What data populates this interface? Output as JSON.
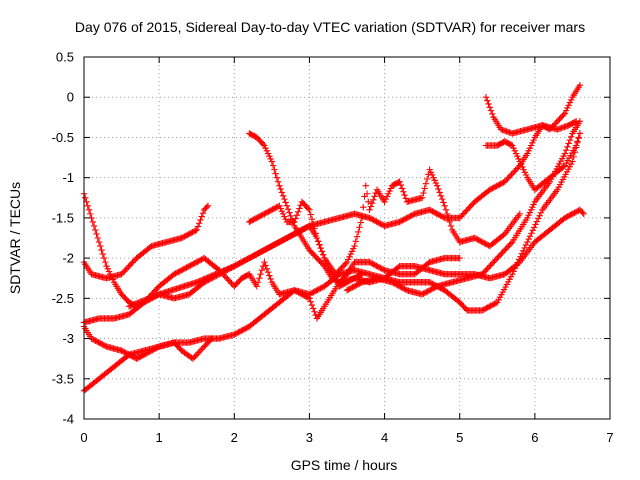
{
  "chart_data": {
    "type": "scatter",
    "title": "Day 076 of 2015, Sidereal Day-to-day VTEC variation (SDTVAR) for receiver mars",
    "xlabel": "GPS time / hours",
    "ylabel": "SDTVAR / TECUs",
    "xlim": [
      0,
      7
    ],
    "ylim": [
      -4,
      0.5
    ],
    "xticks": [
      0,
      1,
      2,
      3,
      4,
      5,
      6,
      7
    ],
    "yticks": [
      0.5,
      0,
      -0.5,
      -1,
      -1.5,
      -2,
      -2.5,
      -3,
      -3.5,
      -4
    ],
    "xtick_labels": [
      "0",
      "1",
      "2",
      "3",
      "4",
      "5",
      "6",
      "7"
    ],
    "ytick_labels": [
      "0.5",
      "0",
      "-0.5",
      "-1",
      "-1.5",
      "-2",
      "-2.5",
      "-3",
      "-3.5",
      "-4"
    ],
    "grid": true,
    "marker": "plus",
    "color": "#ff0000",
    "series": [
      {
        "values": [
          [
            0.0,
            -1.2
          ],
          [
            0.1,
            -1.5
          ],
          [
            0.2,
            -1.8
          ],
          [
            0.3,
            -2.1
          ],
          [
            0.4,
            -2.3
          ],
          [
            0.5,
            -2.45
          ],
          [
            0.6,
            -2.55
          ],
          [
            0.7,
            -2.6
          ],
          [
            0.8,
            -2.55
          ],
          [
            1.0,
            -2.45
          ],
          [
            1.2,
            -2.5
          ],
          [
            1.4,
            -2.45
          ],
          [
            1.6,
            -2.3
          ],
          [
            1.8,
            -2.2
          ],
          [
            2.0,
            -2.1
          ],
          [
            2.3,
            -1.95
          ],
          [
            2.6,
            -1.8
          ],
          [
            2.9,
            -1.65
          ],
          [
            3.0,
            -1.6
          ],
          [
            3.1,
            -1.75
          ],
          [
            3.2,
            -2.0
          ],
          [
            3.3,
            -2.2
          ],
          [
            3.4,
            -2.35
          ],
          [
            3.5,
            -2.3
          ],
          [
            3.7,
            -2.2
          ]
        ]
      },
      {
        "values": [
          [
            0.0,
            -2.05
          ],
          [
            0.1,
            -2.2
          ],
          [
            0.3,
            -2.25
          ],
          [
            0.5,
            -2.2
          ],
          [
            0.7,
            -2.0
          ],
          [
            0.9,
            -1.85
          ],
          [
            1.1,
            -1.8
          ],
          [
            1.3,
            -1.75
          ],
          [
            1.5,
            -1.65
          ],
          [
            1.6,
            -1.4
          ],
          [
            1.65,
            -1.35
          ]
        ]
      },
      {
        "values": [
          [
            0.0,
            -2.8
          ],
          [
            0.2,
            -2.75
          ],
          [
            0.4,
            -2.75
          ],
          [
            0.6,
            -2.7
          ],
          [
            0.8,
            -2.55
          ],
          [
            1.0,
            -2.35
          ],
          [
            1.2,
            -2.2
          ],
          [
            1.4,
            -2.1
          ],
          [
            1.6,
            -2.0
          ],
          [
            1.8,
            -2.15
          ],
          [
            2.0,
            -2.35
          ],
          [
            2.1,
            -2.25
          ],
          [
            2.2,
            -2.2
          ],
          [
            2.3,
            -2.35
          ],
          [
            2.4,
            -2.05
          ],
          [
            2.5,
            -2.3
          ],
          [
            2.6,
            -2.45
          ],
          [
            2.8,
            -2.4
          ],
          [
            3.0,
            -2.5
          ],
          [
            3.1,
            -2.75
          ],
          [
            3.2,
            -2.6
          ],
          [
            3.4,
            -2.3
          ],
          [
            3.6,
            -2.25
          ],
          [
            3.8,
            -2.3
          ],
          [
            4.0,
            -2.25
          ],
          [
            4.2,
            -2.1
          ],
          [
            4.4,
            -2.1
          ],
          [
            4.6,
            -2.15
          ],
          [
            4.8,
            -2.2
          ],
          [
            5.0,
            -2.2
          ],
          [
            5.2,
            -2.2
          ],
          [
            5.4,
            -2.25
          ],
          [
            5.6,
            -2.2
          ],
          [
            5.8,
            -2.05
          ],
          [
            6.0,
            -1.8
          ],
          [
            6.2,
            -1.65
          ],
          [
            6.4,
            -1.5
          ],
          [
            6.6,
            -1.4
          ],
          [
            6.65,
            -1.45
          ]
        ]
      },
      {
        "values": [
          [
            0.0,
            -3.65
          ],
          [
            0.2,
            -3.5
          ],
          [
            0.4,
            -3.35
          ],
          [
            0.6,
            -3.2
          ],
          [
            0.8,
            -3.15
          ],
          [
            1.0,
            -3.1
          ],
          [
            1.2,
            -3.05
          ],
          [
            1.4,
            -3.05
          ],
          [
            1.6,
            -3.0
          ],
          [
            1.8,
            -3.0
          ],
          [
            2.0,
            -2.95
          ],
          [
            2.2,
            -2.85
          ],
          [
            2.4,
            -2.7
          ],
          [
            2.6,
            -2.55
          ],
          [
            2.8,
            -2.4
          ],
          [
            3.0,
            -2.45
          ],
          [
            3.2,
            -2.35
          ],
          [
            3.4,
            -2.2
          ],
          [
            3.6,
            -2.15
          ],
          [
            3.8,
            -2.2
          ],
          [
            4.0,
            -2.25
          ],
          [
            4.2,
            -2.3
          ],
          [
            4.4,
            -2.3
          ],
          [
            4.6,
            -2.3
          ],
          [
            4.8,
            -2.4
          ],
          [
            5.0,
            -2.55
          ],
          [
            5.1,
            -2.65
          ],
          [
            5.3,
            -2.65
          ],
          [
            5.5,
            -2.55
          ],
          [
            5.7,
            -2.2
          ],
          [
            5.9,
            -1.8
          ],
          [
            6.1,
            -1.4
          ],
          [
            6.3,
            -1.15
          ],
          [
            6.5,
            -0.8
          ],
          [
            6.6,
            -0.45
          ]
        ]
      },
      {
        "values": [
          [
            0.0,
            -2.85
          ],
          [
            0.1,
            -3.0
          ],
          [
            0.3,
            -3.1
          ],
          [
            0.5,
            -3.15
          ],
          [
            0.7,
            -3.25
          ],
          [
            0.8,
            -3.2
          ],
          [
            1.0,
            -3.1
          ],
          [
            1.2,
            -3.05
          ],
          [
            1.3,
            -3.15
          ],
          [
            1.45,
            -3.25
          ],
          [
            1.6,
            -3.1
          ],
          [
            1.7,
            -3.0
          ]
        ]
      },
      {
        "values": [
          [
            2.2,
            -0.45
          ],
          [
            2.3,
            -0.5
          ],
          [
            2.4,
            -0.6
          ],
          [
            2.5,
            -0.8
          ],
          [
            2.6,
            -1.1
          ],
          [
            2.7,
            -1.35
          ],
          [
            2.8,
            -1.6
          ],
          [
            2.9,
            -1.75
          ],
          [
            3.0,
            -1.9
          ],
          [
            3.1,
            -2.0
          ],
          [
            3.2,
            -2.1
          ],
          [
            3.3,
            -2.25
          ],
          [
            3.4,
            -2.3
          ],
          [
            3.5,
            -2.2
          ],
          [
            3.6,
            -2.05
          ],
          [
            3.8,
            -2.05
          ],
          [
            4.0,
            -2.15
          ],
          [
            4.2,
            -2.2
          ],
          [
            4.4,
            -2.2
          ],
          [
            4.6,
            -2.05
          ],
          [
            4.8,
            -2.0
          ],
          [
            5.0,
            -2.0
          ]
        ]
      },
      {
        "values": [
          [
            2.2,
            -1.55
          ],
          [
            2.4,
            -1.45
          ],
          [
            2.6,
            -1.35
          ],
          [
            2.7,
            -1.55
          ],
          [
            2.8,
            -1.55
          ],
          [
            2.9,
            -1.3
          ],
          [
            3.0,
            -1.4
          ],
          [
            3.1,
            -1.75
          ],
          [
            3.2,
            -2.0
          ],
          [
            3.35,
            -2.2
          ],
          [
            3.5,
            -2.05
          ],
          [
            3.6,
            -1.85
          ],
          [
            3.7,
            -1.5
          ],
          [
            3.75,
            -1.1
          ],
          [
            3.8,
            -1.4
          ],
          [
            3.9,
            -1.15
          ],
          [
            4.0,
            -1.3
          ],
          [
            4.1,
            -1.1
          ],
          [
            4.2,
            -1.05
          ],
          [
            4.3,
            -1.3
          ],
          [
            4.5,
            -1.25
          ],
          [
            4.6,
            -0.9
          ],
          [
            4.7,
            -1.1
          ],
          [
            4.8,
            -1.35
          ],
          [
            4.9,
            -1.65
          ],
          [
            5.0,
            -1.8
          ],
          [
            5.2,
            -1.75
          ],
          [
            5.4,
            -1.85
          ],
          [
            5.6,
            -1.7
          ],
          [
            5.8,
            -1.45
          ]
        ]
      },
      {
        "values": [
          [
            0.6,
            -2.6
          ],
          [
            1.0,
            -2.45
          ],
          [
            1.5,
            -2.3
          ],
          [
            2.0,
            -2.1
          ],
          [
            2.5,
            -1.85
          ],
          [
            2.8,
            -1.7
          ],
          [
            3.0,
            -1.6
          ],
          [
            3.2,
            -1.55
          ],
          [
            3.4,
            -1.5
          ],
          [
            3.6,
            -1.45
          ],
          [
            3.8,
            -1.5
          ],
          [
            4.0,
            -1.6
          ],
          [
            4.2,
            -1.55
          ],
          [
            4.4,
            -1.45
          ],
          [
            4.6,
            -1.4
          ],
          [
            4.8,
            -1.5
          ],
          [
            5.0,
            -1.5
          ],
          [
            5.2,
            -1.3
          ],
          [
            5.4,
            -1.15
          ],
          [
            5.6,
            -1.05
          ],
          [
            5.8,
            -0.85
          ],
          [
            5.9,
            -0.7
          ],
          [
            6.0,
            -0.5
          ],
          [
            6.1,
            -0.35
          ],
          [
            6.2,
            -0.4
          ],
          [
            6.4,
            -0.2
          ],
          [
            6.5,
            0.0
          ],
          [
            6.6,
            0.15
          ]
        ]
      },
      {
        "values": [
          [
            3.5,
            -2.4
          ],
          [
            3.7,
            -2.3
          ],
          [
            3.9,
            -2.25
          ],
          [
            4.1,
            -2.3
          ],
          [
            4.3,
            -2.4
          ],
          [
            4.5,
            -2.45
          ],
          [
            4.7,
            -2.35
          ],
          [
            4.9,
            -2.3
          ],
          [
            5.1,
            -2.25
          ],
          [
            5.3,
            -2.2
          ],
          [
            5.5,
            -2.0
          ],
          [
            5.7,
            -1.8
          ],
          [
            5.9,
            -1.5
          ],
          [
            6.0,
            -1.3
          ],
          [
            6.2,
            -1.05
          ],
          [
            6.4,
            -0.7
          ],
          [
            6.5,
            -0.45
          ],
          [
            6.6,
            -0.3
          ]
        ]
      },
      {
        "values": [
          [
            5.35,
            0.0
          ],
          [
            5.45,
            -0.25
          ],
          [
            5.55,
            -0.4
          ],
          [
            5.7,
            -0.45
          ],
          [
            5.9,
            -0.4
          ],
          [
            6.1,
            -0.35
          ],
          [
            6.3,
            -0.4
          ],
          [
            6.45,
            -0.35
          ],
          [
            6.55,
            -0.3
          ]
        ]
      },
      {
        "values": [
          [
            5.35,
            -0.6
          ],
          [
            5.5,
            -0.6
          ],
          [
            5.6,
            -0.55
          ],
          [
            5.7,
            -0.6
          ],
          [
            5.8,
            -0.8
          ],
          [
            5.9,
            -1.0
          ],
          [
            6.0,
            -1.15
          ],
          [
            6.2,
            -1.0
          ],
          [
            6.4,
            -0.85
          ],
          [
            6.55,
            -0.6
          ],
          [
            6.6,
            -0.45
          ]
        ]
      }
    ]
  }
}
